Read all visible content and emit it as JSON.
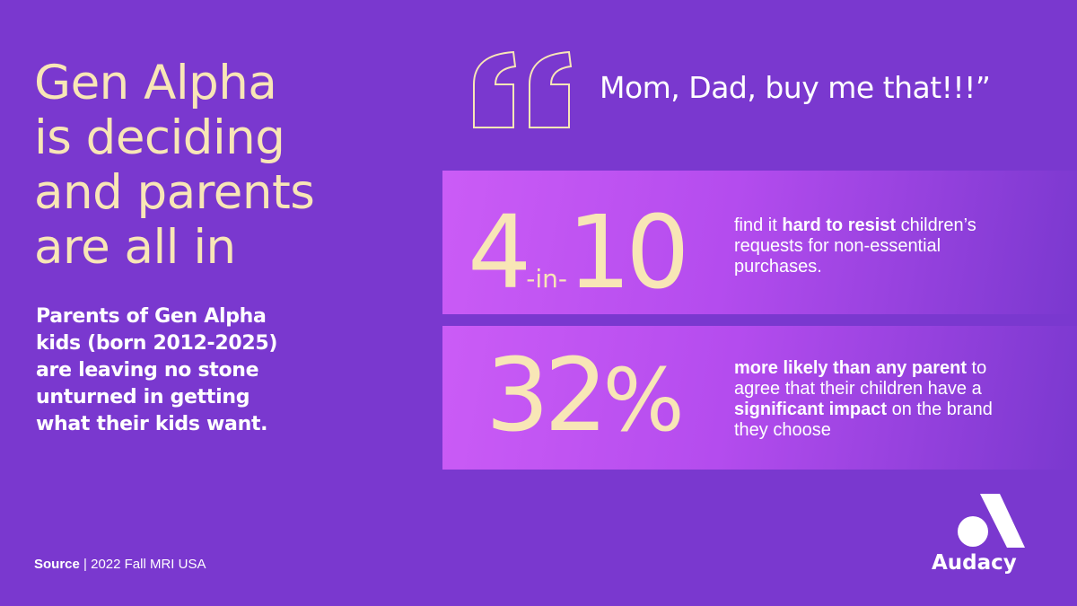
{
  "headline": {
    "lines": [
      "Gen Alpha",
      "is deciding",
      "and parents",
      "are all in"
    ]
  },
  "subtext": {
    "lines": [
      "Parents of Gen Alpha",
      "kids (born 2012-2025)",
      "are leaving no stone",
      "unturned in getting",
      "what their kids want."
    ]
  },
  "quote": {
    "text": "Mom, Dad, buy me that!!!”"
  },
  "stats": [
    {
      "big": "4",
      "middle": "-in-",
      "end": "10",
      "description": [
        {
          "text": "find it ",
          "bold": false
        },
        {
          "text": "hard to resist",
          "bold": true
        },
        {
          "text": " children’s requests for non-essential purchases.",
          "bold": false
        }
      ]
    },
    {
      "big": "32",
      "middle": "",
      "end": "%",
      "description": [
        {
          "text": "more likely than any parent",
          "bold": true
        },
        {
          "text": " to agree that their children have a ",
          "bold": false
        },
        {
          "text": "significant impact",
          "bold": true
        },
        {
          "text": " on the brand they choose",
          "bold": false
        }
      ]
    }
  ],
  "source": {
    "label": "Source",
    "separator": "|",
    "text": "2022 Fall MRI USA"
  },
  "logo": {
    "text": "Audacy"
  }
}
